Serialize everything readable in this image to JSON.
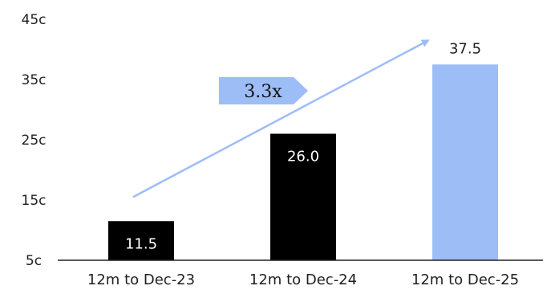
{
  "chart_data": {
    "type": "bar",
    "categories": [
      "12m to Dec-23",
      "12m to Dec-24",
      "12m to Dec-25"
    ],
    "values": [
      11.5,
      26.0,
      37.5
    ],
    "data_labels": [
      "11.5",
      "26.0",
      "37.5"
    ],
    "yticks": [
      "5c",
      "15c",
      "25c",
      "35c",
      "45c"
    ],
    "ytick_values": [
      5,
      15,
      25,
      35,
      45
    ],
    "ylim": [
      5,
      45
    ],
    "title": "",
    "xlabel": "",
    "ylabel": "",
    "grid": false,
    "legend": "none",
    "bar_colors": [
      "#000000",
      "#000000",
      "#9dbdf7"
    ],
    "data_label_colors": [
      "#ffffff",
      "#ffffff",
      "#1f1f1f"
    ],
    "data_label_positions": [
      "inside",
      "inside",
      "above"
    ],
    "annotation": {
      "text": "3.3x",
      "color": "#9dbdf7",
      "arrow_from_value": 15.5,
      "arrow_to_value": 41.5
    }
  }
}
